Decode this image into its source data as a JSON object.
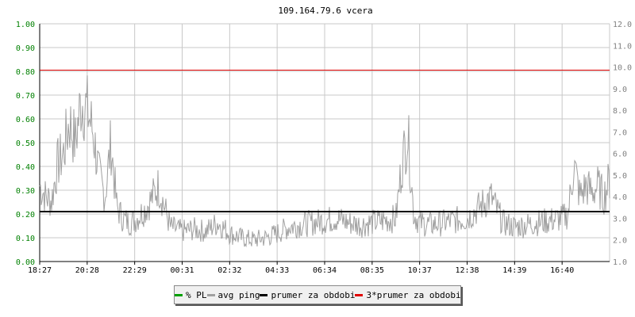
{
  "chart_data": {
    "type": "line",
    "title": "109.164.79.6 vcera",
    "x_tick_labels": [
      "18:27",
      "20:28",
      "22:29",
      "00:31",
      "02:32",
      "04:33",
      "06:34",
      "08:35",
      "10:37",
      "12:38",
      "14:39",
      "16:40"
    ],
    "y_left_ticks": [
      "0.00",
      "0.10",
      "0.20",
      "0.30",
      "0.40",
      "0.50",
      "0.60",
      "0.70",
      "0.80",
      "0.90",
      "1.00"
    ],
    "y_right_ticks": [
      "1.0",
      "2.0",
      "3.0",
      "4.0",
      "5.0",
      "6.0",
      "7.0",
      "8.0",
      "9.0",
      "10.0",
      "11.0",
      "12.0"
    ],
    "y_left_range": [
      0,
      1.0
    ],
    "y_right_range": [
      1.0,
      12.0
    ],
    "grid": true,
    "series": [
      {
        "name": "% PL",
        "color": "#00a000",
        "values": []
      },
      {
        "name": "avg ping",
        "color": "#a0a0a0",
        "axis": "right",
        "x_hours": [
          0,
          0.25,
          0.5,
          0.75,
          1.0,
          1.25,
          1.5,
          1.75,
          2.0,
          2.25,
          2.5,
          2.75,
          3.0,
          3.25,
          3.5,
          3.75,
          4.0,
          4.5,
          5.0,
          5.5,
          6.0,
          6.5,
          7.0,
          7.5,
          8.0,
          8.5,
          9.0,
          9.5,
          10.0,
          10.5,
          11.0,
          11.5,
          12.0,
          12.5,
          13.0,
          13.5,
          14.0,
          14.5,
          15.0,
          15.25,
          15.5,
          15.75,
          16.0,
          16.5,
          17.0,
          17.5,
          18.0,
          18.5,
          19.0,
          19.5,
          20.0,
          20.5,
          21.0,
          21.5,
          22.0,
          22.25,
          22.5,
          22.75,
          23.0,
          23.25,
          23.5,
          23.75,
          24.0
        ],
        "values": [
          4.5,
          4.0,
          3.8,
          5.5,
          6.0,
          7.5,
          6.5,
          8.5,
          8.0,
          7.0,
          5.0,
          4.0,
          6.5,
          3.5,
          3.0,
          2.8,
          2.9,
          3.5,
          4.5,
          2.6,
          2.4,
          2.5,
          2.4,
          2.8,
          2.3,
          2.1,
          2.0,
          2.1,
          2.3,
          2.6,
          2.7,
          2.8,
          2.9,
          3.0,
          2.8,
          2.7,
          2.8,
          2.9,
          3.0,
          5.5,
          7.0,
          3.2,
          2.8,
          2.7,
          2.8,
          2.9,
          3.0,
          3.5,
          4.0,
          2.8,
          2.6,
          2.7,
          2.8,
          2.9,
          3.0,
          3.2,
          5.5,
          4.0,
          4.5,
          4.2,
          4.5,
          4.0,
          4.8
        ]
      },
      {
        "name": "prumer za obdobi",
        "color": "#000000",
        "axis": "left",
        "values": [
          0.21
        ]
      },
      {
        "name": "3*prumer za obdobi",
        "color": "#e00000",
        "axis": "left",
        "values": [
          0.805
        ]
      }
    ]
  },
  "legend": {
    "items": [
      {
        "label": "% PL",
        "color": "#00a000"
      },
      {
        "label": "avg ping",
        "color": "#a0a0a0"
      },
      {
        "label": "prumer za obdobi",
        "color": "#000000"
      },
      {
        "label": "3*prumer za obdobi",
        "color": "#e00000"
      }
    ]
  },
  "colors": {
    "left_axis_labels": "#008000",
    "right_axis_labels": "#808080",
    "grid": "#c8c8c8"
  }
}
